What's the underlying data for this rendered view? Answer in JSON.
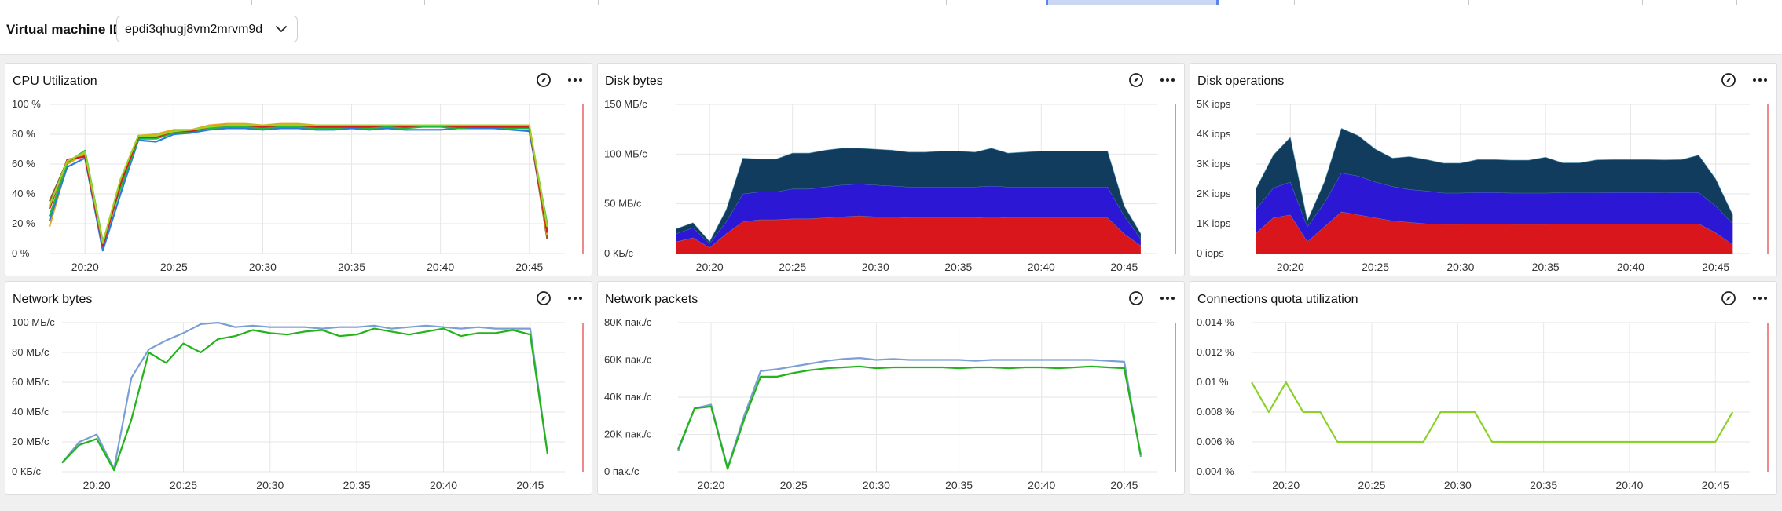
{
  "filter": {
    "label": "Virtual machine ID",
    "vm_id": "epdi3qhugj8vm2mrvm9d",
    "dropdown_icon": "chevron-down-icon"
  },
  "panel_icons": {
    "explore": "compass-icon",
    "menu": "more-horizontal-icon"
  },
  "colors": {
    "now_line": "#f08a8a",
    "disk_write": "#d8161b",
    "disk_read": "#2c17d4",
    "disk_total": "#113c5e",
    "net_out": "#7b9fd4",
    "net_in": "#22b41a",
    "quota": "#8bd12a"
  },
  "x_ticks": [
    "20:20",
    "20:25",
    "20:30",
    "20:35",
    "20:40",
    "20:45"
  ],
  "panels": [
    {
      "id": "cpu",
      "title": "CPU Utilization",
      "chart_data": {
        "type": "line",
        "y_ticks": [
          "100 %",
          "80 %",
          "60 %",
          "40 %",
          "20 %",
          "0 %"
        ],
        "ylim": [
          0,
          100
        ],
        "xlim_min": [
          18,
          47
        ],
        "series": [
          {
            "color": "#8a5a2a",
            "values": [
              35,
              62,
              66,
              6,
              48,
              78,
              78,
              82,
              82,
              85,
              86,
              86,
              85,
              86,
              86,
              85,
              85,
              85,
              85,
              86,
              85,
              86,
              86,
              85,
              85,
              85,
              85,
              85,
              10
            ]
          },
          {
            "color": "#e5a51c",
            "values": [
              18,
              60,
              67,
              4,
              46,
              79,
              80,
              83,
              83,
              86,
              87,
              87,
              86,
              87,
              87,
              86,
              86,
              86,
              86,
              86,
              86,
              86,
              86,
              86,
              86,
              86,
              86,
              86,
              12
            ]
          },
          {
            "color": "#2a7be0",
            "values": [
              22,
              58,
              64,
              2,
              40,
              76,
              75,
              80,
              81,
              83,
              84,
              84,
              83,
              84,
              84,
              83,
              83,
              84,
              83,
              84,
              83,
              83,
              83,
              84,
              84,
              84,
              83,
              82,
              16
            ]
          },
          {
            "color": "#20b83a",
            "values": [
              25,
              61,
              69,
              8,
              44,
              77,
              77,
              81,
              82,
              84,
              85,
              85,
              84,
              85,
              85,
              84,
              84,
              85,
              84,
              85,
              84,
              85,
              85,
              84,
              85,
              85,
              84,
              84,
              20
            ]
          },
          {
            "color": "#d61b1b",
            "values": [
              30,
              63,
              65,
              5,
              47,
              78,
              78,
              82,
              82,
              85,
              86,
              86,
              85,
              86,
              86,
              85,
              85,
              85,
              85,
              86,
              85,
              86,
              86,
              85,
              85,
              85,
              85,
              85,
              14
            ]
          },
          {
            "color": "#9bd32a",
            "values": [
              32,
              62,
              68,
              7,
              50,
              79,
              79,
              82,
              83,
              85,
              86,
              86,
              86,
              86,
              86,
              86,
              86,
              86,
              86,
              86,
              86,
              86,
              86,
              86,
              86,
              86,
              86,
              86,
              18
            ]
          }
        ]
      }
    },
    {
      "id": "disk_bytes",
      "title": "Disk bytes",
      "chart_data": {
        "type": "area",
        "y_ticks": [
          "150 МБ/с",
          "100 МБ/с",
          "50 МБ/с",
          "0 КБ/с"
        ],
        "ylim": [
          0,
          150
        ],
        "xlim_min": [
          18,
          47
        ],
        "stack": [
          {
            "color": "#d8161b",
            "values": [
              12,
              16,
              6,
              20,
              32,
              34,
              34,
              35,
              35,
              36,
              37,
              38,
              37,
              37,
              36,
              36,
              36,
              36,
              36,
              37,
              36,
              36,
              36,
              36,
              36,
              36,
              36,
              20,
              8
            ]
          },
          {
            "color": "#2c17d4",
            "values": [
              8,
              10,
              4,
              12,
              28,
              28,
              28,
              30,
              30,
              31,
              32,
              32,
              32,
              31,
              31,
              31,
              31,
              31,
              31,
              31,
              31,
              31,
              31,
              31,
              31,
              31,
              31,
              18,
              7
            ]
          },
          {
            "color": "#113c5e",
            "values": [
              5,
              5,
              2,
              12,
              36,
              33,
              33,
              36,
              36,
              37,
              37,
              36,
              36,
              36,
              35,
              35,
              36,
              36,
              35,
              38,
              34,
              35,
              36,
              36,
              36,
              36,
              36,
              10,
              5
            ]
          }
        ]
      }
    },
    {
      "id": "disk_ops",
      "title": "Disk operations",
      "chart_data": {
        "type": "area",
        "y_ticks": [
          "5K iops",
          "4K iops",
          "3K iops",
          "2K iops",
          "1K iops",
          "0 iops"
        ],
        "ylim": [
          0,
          5000
        ],
        "xlim_min": [
          18,
          47
        ],
        "stack": [
          {
            "color": "#d8161b",
            "values": [
              700,
              1200,
              1300,
              400,
              900,
              1400,
              1300,
              1200,
              1100,
              1050,
              1000,
              980,
              980,
              1000,
              1000,
              980,
              980,
              980,
              990,
              990,
              990,
              1000,
              1000,
              1000,
              990,
              1000,
              1000,
              700,
              300
            ]
          },
          {
            "color": "#2c17d4",
            "values": [
              800,
              1000,
              1100,
              500,
              800,
              1300,
              1300,
              1200,
              1150,
              1100,
              1100,
              1050,
              1050,
              1050,
              1050,
              1050,
              1050,
              1050,
              1050,
              1050,
              1050,
              1050,
              1050,
              1050,
              1050,
              1050,
              1050,
              900,
              700
            ]
          },
          {
            "color": "#113c5e",
            "values": [
              700,
              1100,
              1500,
              200,
              700,
              1500,
              1350,
              1100,
              950,
              1100,
              1050,
              1000,
              1000,
              1100,
              1100,
              1100,
              1100,
              1200,
              1000,
              1000,
              1100,
              1100,
              1100,
              1100,
              1100,
              1100,
              1250,
              900,
              300
            ]
          }
        ]
      }
    },
    {
      "id": "net_bytes",
      "title": "Network bytes",
      "chart_data": {
        "type": "line",
        "y_ticks": [
          "100 МБ/с",
          "80 МБ/с",
          "60 МБ/с",
          "40 МБ/с",
          "20 МБ/с",
          "0 КБ/с"
        ],
        "ylim": [
          0,
          100
        ],
        "xlim_min": [
          18,
          47
        ],
        "series": [
          {
            "color": "#7b9fd4",
            "values": [
              6,
              20,
              25,
              2,
              63,
              82,
              88,
              93,
              99,
              100,
              97,
              98,
              97,
              97,
              97,
              96,
              97,
              97,
              98,
              96,
              97,
              98,
              97,
              96,
              97,
              96,
              96,
              96,
              12
            ]
          },
          {
            "color": "#22b41a",
            "values": [
              6,
              18,
              22,
              1,
              35,
              80,
              73,
              86,
              80,
              89,
              91,
              95,
              93,
              92,
              94,
              95,
              91,
              92,
              96,
              94,
              92,
              94,
              96,
              91,
              93,
              93,
              95,
              92,
              12
            ]
          }
        ]
      }
    },
    {
      "id": "net_packets",
      "title": "Network packets",
      "chart_data": {
        "type": "line",
        "y_ticks": [
          "80K пак./с",
          "60K пак./с",
          "40K пак./с",
          "20K пак./с",
          "0 пак./с"
        ],
        "ylim": [
          0,
          80000
        ],
        "xlim_min": [
          18,
          47
        ],
        "series": [
          {
            "color": "#7b9fd4",
            "values": [
              11000,
              34000,
              36000,
              2000,
              30000,
              54000,
              55000,
              56500,
              58000,
              59500,
              60500,
              61000,
              60000,
              60500,
              60000,
              60000,
              60000,
              60000,
              59500,
              60000,
              60000,
              60000,
              60000,
              60000,
              60000,
              60000,
              59500,
              59000,
              8000
            ]
          },
          {
            "color": "#22b41a",
            "values": [
              12000,
              34000,
              35000,
              1500,
              28000,
              51000,
              51000,
              53000,
              54500,
              55500,
              56000,
              56500,
              55500,
              56000,
              56000,
              56000,
              56000,
              55500,
              56000,
              56000,
              55500,
              56000,
              56000,
              55500,
              56000,
              56500,
              56000,
              55500,
              9000
            ]
          }
        ]
      }
    },
    {
      "id": "conn_quota",
      "title": "Connections quota utilization",
      "chart_data": {
        "type": "line",
        "y_ticks": [
          "0.014 %",
          "0.012 %",
          "0.01 %",
          "0.008 %",
          "0.006 %",
          "0.004 %"
        ],
        "ylim": [
          0.004,
          0.014
        ],
        "xlim_min": [
          18,
          47
        ],
        "series": [
          {
            "color": "#8bd12a",
            "values": [
              0.01,
              0.008,
              0.01,
              0.008,
              0.008,
              0.006,
              0.006,
              0.006,
              0.006,
              0.006,
              0.006,
              0.008,
              0.008,
              0.008,
              0.006,
              0.006,
              0.006,
              0.006,
              0.006,
              0.006,
              0.006,
              0.006,
              0.006,
              0.006,
              0.006,
              0.006,
              0.006,
              0.006,
              0.008
            ]
          }
        ]
      }
    }
  ]
}
